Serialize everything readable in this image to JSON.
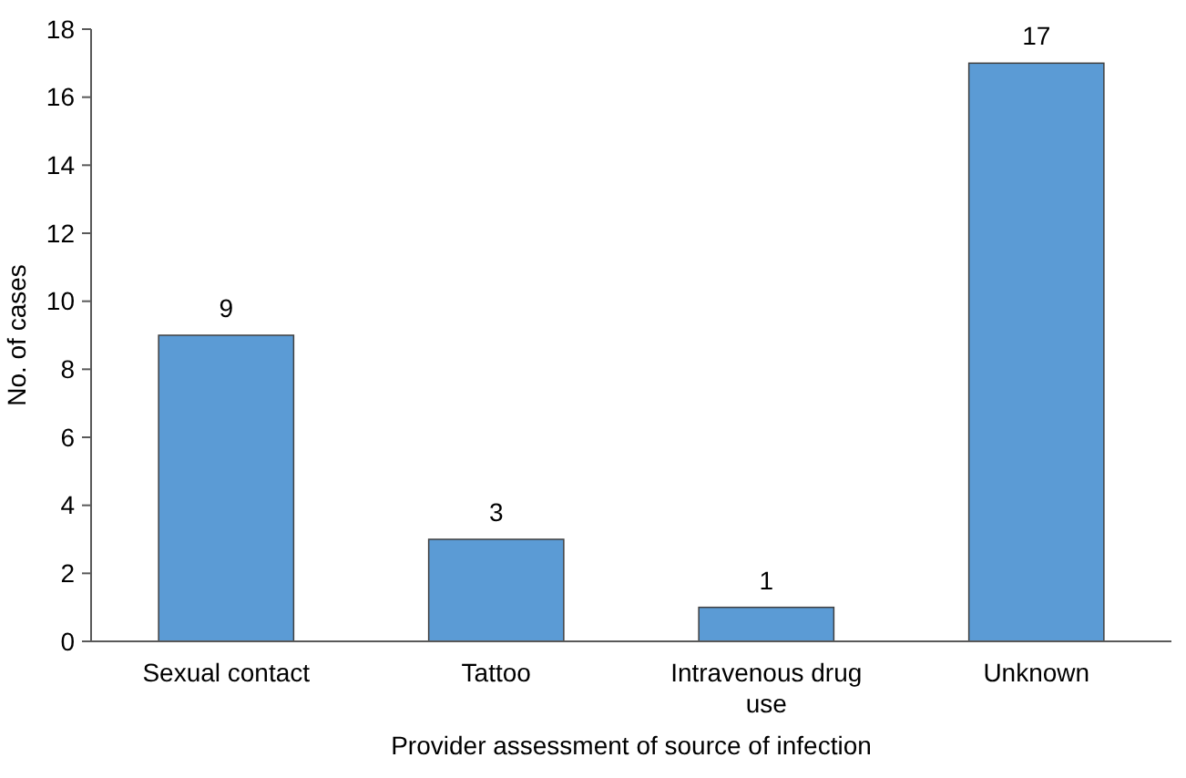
{
  "chart_data": {
    "type": "bar",
    "xlabel": "Provider assessment of source of infection",
    "ylabel": "No. of cases",
    "categories": [
      "Sexual contact",
      "Tattoo",
      "Intravenous drug use",
      "Unknown"
    ],
    "values": [
      9,
      3,
      1,
      17
    ],
    "color": "#5b9bd5",
    "ylim": [
      0,
      18
    ],
    "yticks": [
      0,
      2,
      4,
      6,
      8,
      10,
      12,
      14,
      16,
      18
    ],
    "grid": false,
    "data_labels": true
  }
}
